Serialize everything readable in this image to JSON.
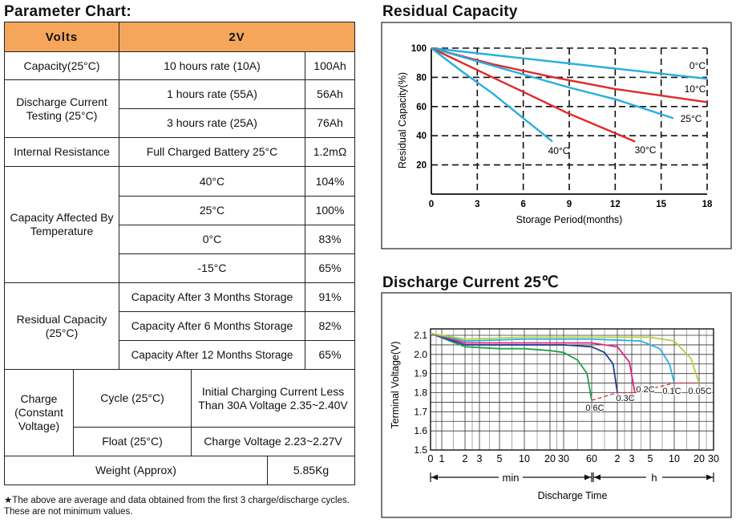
{
  "param": {
    "title": "Parameter Chart:",
    "head": {
      "volts": "Volts",
      "voltage": "2V"
    },
    "capacity": {
      "label": "Capacity(25°C)",
      "rate": "10 hours rate (10A)",
      "value": "100Ah"
    },
    "discharge": {
      "label": "Discharge Current Testing (25°C)",
      "rate1": "1 hours rate (55A)",
      "value1": "56Ah",
      "rate2": "3 hours rate (25A)",
      "value2": "76Ah"
    },
    "resistance": {
      "label": "Internal Resistance",
      "desc": "Full Charged Battery 25°C",
      "value": "1.2mΩ"
    },
    "temp": {
      "label": "Capacity Affected By Temperature",
      "rows": [
        {
          "t": "40°C",
          "v": "104%"
        },
        {
          "t": "25°C",
          "v": "100%"
        },
        {
          "t": "0°C",
          "v": "83%"
        },
        {
          "t": "-15°C",
          "v": "65%"
        }
      ]
    },
    "residual": {
      "label": "Residual Capacity (25°C)",
      "rows": [
        {
          "t": "Capacity After 3 Months Storage",
          "v": "91%"
        },
        {
          "t": "Capacity After 6 Months Storage",
          "v": "82%"
        },
        {
          "t": "Capacity After 12 Months Storage",
          "v": "65%"
        }
      ]
    },
    "charge": {
      "label": "Charge (Constant Voltage)",
      "cycle_label": "Cycle (25°C)",
      "cycle_text": "Initial Charging Current Less Than 30A Voltage 2.35~2.40V",
      "float_label": "Float (25°C)",
      "float_text": "Charge Voltage 2.23~2.27V"
    },
    "weight": {
      "label": "Weight (Approx)",
      "value": "5.85Kg"
    },
    "footnote": "★The above are average and data obtained from the first 3 charge/discharge cycles. These are not minimum values."
  },
  "chart_data": [
    {
      "type": "line",
      "title": "Residual Capacity",
      "xlabel": "Storage Period(months)",
      "ylabel": "Residual Capacity(%)",
      "xlim": [
        0,
        18
      ],
      "ylim": [
        0,
        100
      ],
      "xticks": [
        0,
        3,
        6,
        9,
        12,
        15,
        18
      ],
      "yticks": [
        20,
        40,
        60,
        80,
        100
      ],
      "grid": true,
      "series": [
        {
          "name": "0°C",
          "color": "#27aee0",
          "x": [
            0,
            6,
            12,
            18
          ],
          "y": [
            100,
            93,
            86,
            79
          ]
        },
        {
          "name": "10°C",
          "color": "#e02a2a",
          "x": [
            0,
            4,
            8,
            12,
            18
          ],
          "y": [
            100,
            89,
            80,
            72,
            63
          ]
        },
        {
          "name": "25°C",
          "color": "#27aee0",
          "x": [
            0,
            3,
            6,
            9,
            12,
            15.8
          ],
          "y": [
            100,
            91,
            82,
            73,
            65,
            52
          ]
        },
        {
          "name": "30°C",
          "color": "#e02a2a",
          "x": [
            0,
            3,
            6,
            9,
            13.3
          ],
          "y": [
            100,
            85,
            70,
            55,
            36
          ]
        },
        {
          "name": "40°C",
          "color": "#27aee0",
          "x": [
            0,
            2,
            4,
            6,
            7.9
          ],
          "y": [
            100,
            84,
            69,
            52,
            36
          ]
        }
      ]
    },
    {
      "type": "line",
      "title": "Discharge Current 25℃",
      "xlabel": "Discharge Time",
      "ylabel": "Terminal Voltage(V)",
      "ylim": [
        1.5,
        2.1
      ],
      "yticks": [
        "1.5",
        "1.6",
        "1.7",
        "1.8",
        "1.9",
        "2.0",
        "2.1"
      ],
      "xticks": [
        "0",
        "1",
        "2",
        "3",
        "5",
        "10",
        "20",
        "30",
        "60",
        "2",
        "3",
        "5",
        "10",
        "20",
        "30"
      ],
      "unit_min": "min",
      "unit_h": "h",
      "grid": true,
      "series": [
        {
          "name": "0.6C",
          "color": "#1ea24a",
          "x_min": [
            0,
            2,
            5,
            10,
            20,
            30,
            45,
            55,
            60
          ],
          "y": [
            2.11,
            2.04,
            2.03,
            2.03,
            2.02,
            2.01,
            1.97,
            1.9,
            1.76
          ]
        },
        {
          "name": "0.3C",
          "color": "#243f91",
          "x_min": [
            0,
            2,
            10,
            30,
            60,
            90,
            110,
            120
          ],
          "y": [
            2.11,
            2.05,
            2.05,
            2.05,
            2.04,
            2.01,
            1.95,
            1.8
          ]
        },
        {
          "name": "0.2C",
          "color": "#e2257f",
          "x_min": [
            0,
            2,
            10,
            30,
            60,
            120,
            170,
            200
          ],
          "y": [
            2.11,
            2.06,
            2.06,
            2.06,
            2.06,
            2.04,
            1.96,
            1.8
          ]
        },
        {
          "name": "0.1C",
          "color": "#27aee0",
          "x_min": [
            0,
            2,
            10,
            60,
            240,
            420,
            540,
            600
          ],
          "y": [
            2.11,
            2.07,
            2.08,
            2.08,
            2.07,
            2.03,
            1.95,
            1.85
          ]
        },
        {
          "name": "0.05C",
          "color": "#b4cf3c",
          "x_min": [
            0,
            2,
            10,
            60,
            300,
            600,
            1000,
            1200
          ],
          "y": [
            2.11,
            2.08,
            2.09,
            2.09,
            2.09,
            2.07,
            1.98,
            1.85
          ]
        }
      ],
      "cutoff_line": {
        "color": "#e02a2a",
        "x_min": [
          60,
          120,
          200,
          600,
          1200
        ],
        "y": [
          1.76,
          1.8,
          1.8,
          1.85,
          1.85
        ]
      }
    }
  ]
}
